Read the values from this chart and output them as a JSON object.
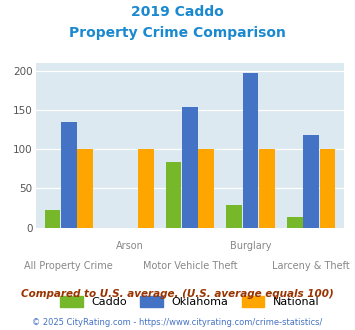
{
  "title_line1": "2019 Caddo",
  "title_line2": "Property Crime Comparison",
  "x_labels_top": [
    "",
    "Arson",
    "",
    "Burglary",
    ""
  ],
  "x_labels_bottom": [
    "All Property Crime",
    "",
    "Motor Vehicle Theft",
    "",
    "Larceny & Theft"
  ],
  "caddo": [
    22,
    0,
    84,
    29,
    13
  ],
  "oklahoma": [
    135,
    0,
    153,
    197,
    118
  ],
  "national": [
    100,
    100,
    100,
    100,
    100
  ],
  "caddo_color": "#76b82a",
  "oklahoma_color": "#4472c4",
  "national_color": "#ffa500",
  "bg_color": "#dce9f0",
  "title_color": "#1a89d0",
  "ylim": [
    0,
    210
  ],
  "yticks": [
    0,
    50,
    100,
    150,
    200
  ],
  "footnote": "Compared to U.S. average. (U.S. average equals 100)",
  "copyright": "© 2025 CityRating.com - https://www.cityrating.com/crime-statistics/",
  "footnote_color": "#993300",
  "copyright_color": "#4472c4"
}
